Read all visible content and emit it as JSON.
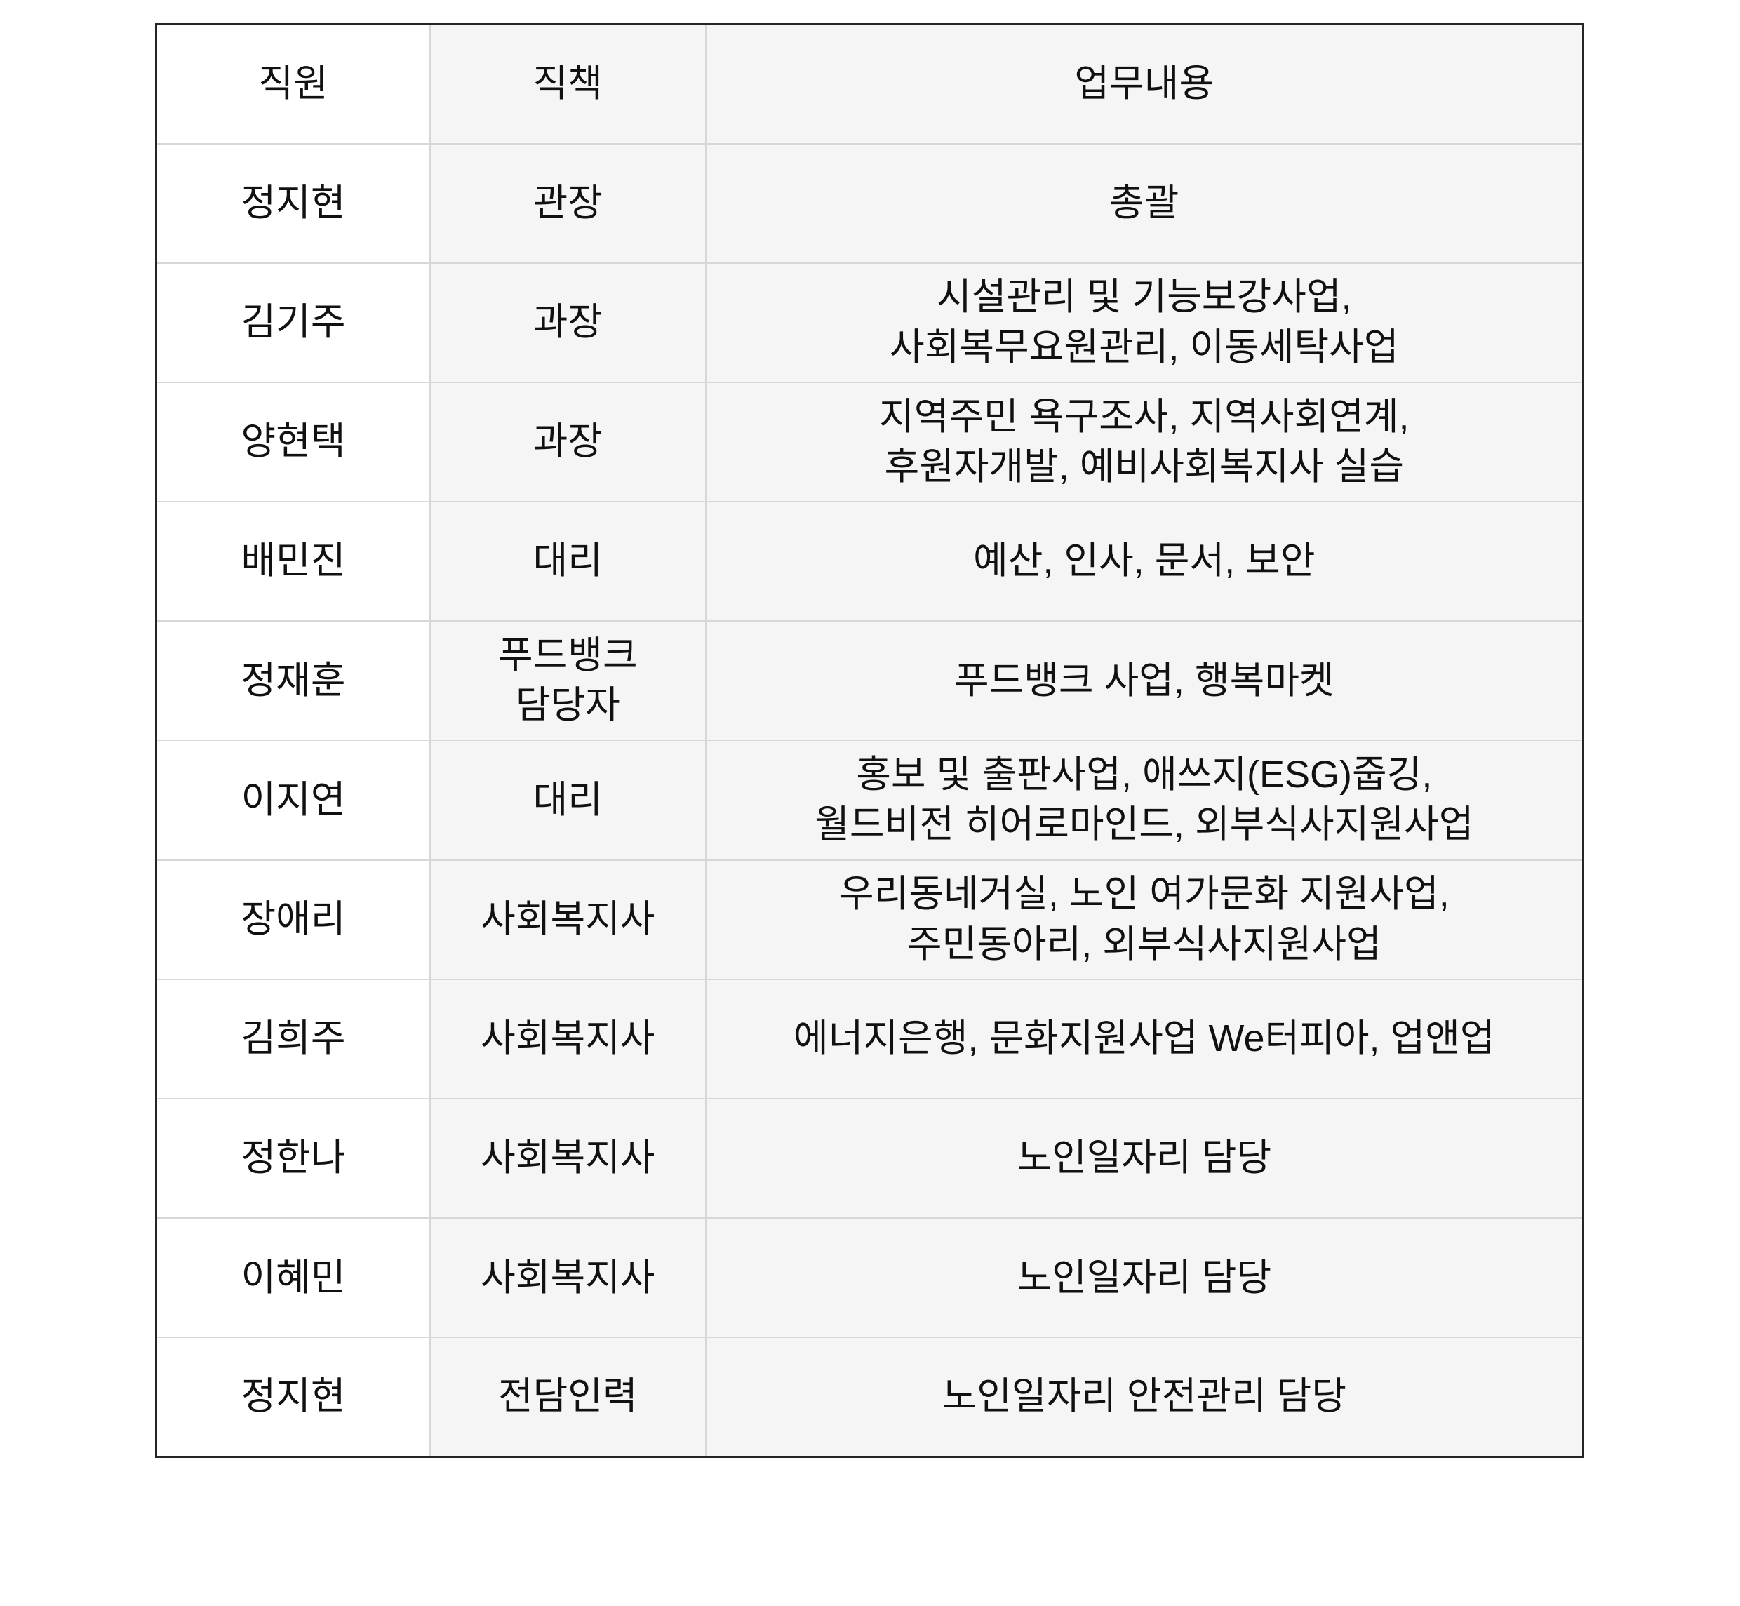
{
  "colors": {
    "page_bg": "#ffffff",
    "first_column_bg": "#ffffff",
    "other_columns_bg": "#f5f5f5",
    "outer_border": "#262626",
    "inner_border": "#d7d7d7",
    "text": "#111111"
  },
  "chart_data": {
    "type": "table",
    "columns": [
      "직원",
      "직책",
      "업무내용"
    ],
    "rows": [
      {
        "name": "정지현",
        "position": "관장",
        "duties": "총괄"
      },
      {
        "name": "김기주",
        "position": "과장",
        "duties": "시설관리 및 기능보강사업,\n사회복무요원관리, 이동세탁사업"
      },
      {
        "name": "양현택",
        "position": "과장",
        "duties": "지역주민 욕구조사, 지역사회연계,\n후원자개발, 예비사회복지사 실습"
      },
      {
        "name": "배민진",
        "position": "대리",
        "duties": "예산, 인사, 문서, 보안"
      },
      {
        "name": "정재훈",
        "position": "푸드뱅크\n담당자",
        "duties": "푸드뱅크 사업, 행복마켓"
      },
      {
        "name": "이지연",
        "position": "대리",
        "duties": "홍보 및 출판사업, 애쓰지(ESG)줍깅,\n월드비전 히어로마인드, 외부식사지원사업"
      },
      {
        "name": "장애리",
        "position": "사회복지사",
        "duties": "우리동네거실, 노인 여가문화 지원사업,\n주민동아리, 외부식사지원사업"
      },
      {
        "name": "김희주",
        "position": "사회복지사",
        "duties": "에너지은행, 문화지원사업 We터피아, 업앤업"
      },
      {
        "name": "정한나",
        "position": "사회복지사",
        "duties": "노인일자리 담당"
      },
      {
        "name": "이혜민",
        "position": "사회복지사",
        "duties": "노인일자리 담당"
      },
      {
        "name": "정지현",
        "position": "전담인력",
        "duties": "노인일자리 안전관리 담당"
      }
    ]
  }
}
